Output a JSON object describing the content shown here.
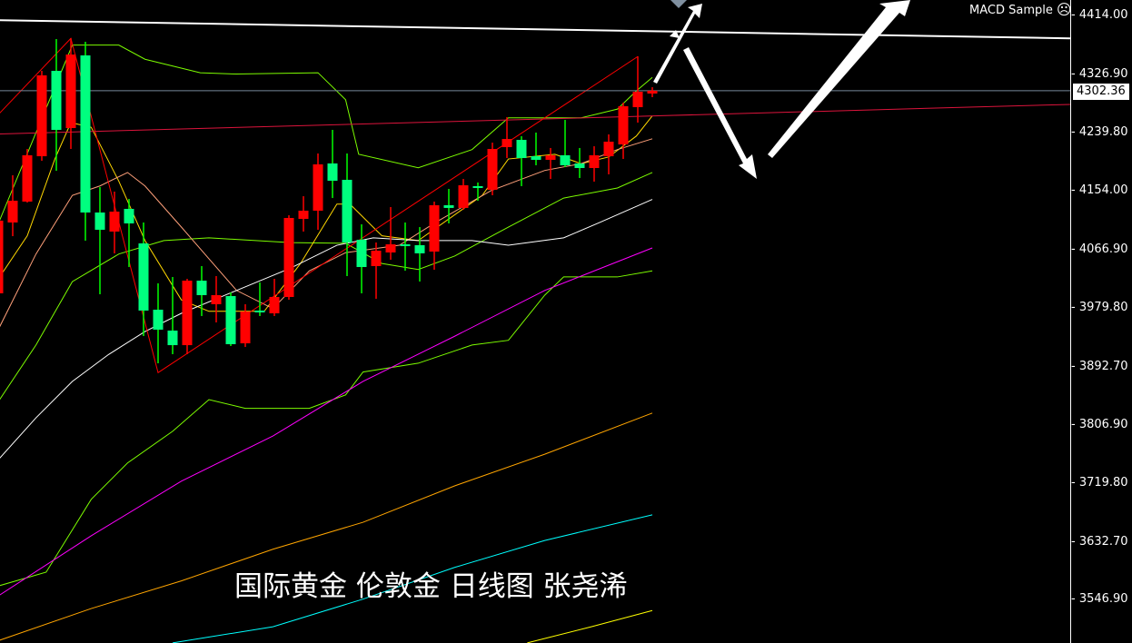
{
  "indicator": {
    "name": "MACD Sample",
    "status_icon": "sad-face-icon"
  },
  "overlay_text": "国际黄金 伦敦金 日线图 张尧浠",
  "current_price": "4302.36",
  "colors": {
    "background": "#000000",
    "bull": "#FF0000",
    "bear": "#00FF7F",
    "bid_line": "#778899"
  },
  "chart_data": {
    "type": "candlestick",
    "title": "",
    "y_axis": {
      "position": "right",
      "range": [
        3490,
        4437
      ],
      "ticks": [
        "4414.00",
        "4326.90",
        "4239.80",
        "4154.00",
        "4066.90",
        "3979.80",
        "3892.70",
        "3806.90",
        "3719.80",
        "3632.70",
        "3546.90"
      ],
      "tick_values": [
        4414.0,
        4326.9,
        4239.8,
        4154.0,
        4066.9,
        3979.8,
        3892.7,
        3806.9,
        3719.8,
        3632.7,
        3546.9
      ]
    },
    "grid": false,
    "candles_ohlc": [
      [
        4001.7,
        4127.0,
        3992.2,
        4109.5
      ],
      [
        4106.8,
        4176.8,
        4086.5,
        4139.1
      ],
      [
        4137.8,
        4215.9,
        4136.4,
        4206.5
      ],
      [
        4205.1,
        4331.8,
        4198.4,
        4325.1
      ],
      [
        4331.8,
        4379.0,
        4183.6,
        4244.2
      ],
      [
        4246.9,
        4380.3,
        4215.9,
        4356.0
      ],
      [
        4354.7,
        4374.9,
        4079.8,
        4121.6
      ],
      [
        4121.6,
        4159.3,
        4000.3,
        4096.0
      ],
      [
        4093.3,
        4152.6,
        4060.9,
        4122.9
      ],
      [
        4127.0,
        4141.8,
        4040.7,
        4105.4
      ],
      [
        4075.8,
        4106.8,
        3938.3,
        3976.1
      ],
      [
        3977.4,
        4016.5,
        3897.9,
        3947.8
      ],
      [
        3946.4,
        4025.9,
        3911.4,
        3924.8
      ],
      [
        3924.8,
        4023.2,
        3911.4,
        4020.5
      ],
      [
        4020.5,
        4042.1,
        3968.0,
        3999.0
      ],
      [
        3985.5,
        4027.3,
        3958.5,
        3999.0
      ],
      [
        3997.6,
        4003.0,
        3923.5,
        3926.2
      ],
      [
        3927.5,
        3985.5,
        3922.1,
        3974.7
      ],
      [
        3976.1,
        4017.8,
        3968.0,
        3973.4
      ],
      [
        3972.0,
        4023.2,
        3968.0,
        3996.3
      ],
      [
        3996.3,
        4117.5,
        3992.2,
        4113.5
      ],
      [
        4112.1,
        4145.8,
        4093.3,
        4124.3
      ],
      [
        4124.3,
        4209.2,
        4096.0,
        4193.0
      ],
      [
        4194.4,
        4244.2,
        4143.1,
        4168.7
      ],
      [
        4170.1,
        4209.2,
        4027.3,
        4077.1
      ],
      [
        4081.2,
        4104.1,
        4001.7,
        4040.7
      ],
      [
        4042.1,
        4077.1,
        3993.6,
        4065.0
      ],
      [
        4062.3,
        4129.7,
        4051.5,
        4074.4
      ],
      [
        4074.4,
        4106.8,
        4035.3,
        4071.7
      ],
      [
        4073.1,
        4100.0,
        4019.2,
        4061.0
      ],
      [
        4063.6,
        4137.8,
        4036.7,
        4132.4
      ],
      [
        4132.4,
        4156.6,
        4105.4,
        4128.4
      ],
      [
        4128.4,
        4171.4,
        4125.6,
        4162.0
      ],
      [
        4160.7,
        4166.1,
        4139.1,
        4158.0
      ],
      [
        4155.3,
        4225.3,
        4147.2,
        4215.9
      ],
      [
        4218.6,
        4263.1,
        4202.4,
        4230.7
      ],
      [
        4229.4,
        4234.8,
        4160.7,
        4202.4
      ],
      [
        4205.1,
        4240.2,
        4191.7,
        4199.7
      ],
      [
        4199.7,
        4217.3,
        4171.4,
        4206.5
      ],
      [
        4206.5,
        4259.0,
        4189.0,
        4191.7
      ],
      [
        4194.4,
        4217.3,
        4172.8,
        4187.6
      ],
      [
        4187.6,
        4219.9,
        4167.4,
        4206.5
      ],
      [
        4205.1,
        4237.5,
        4178.2,
        4226.7
      ],
      [
        4222.6,
        4284.6,
        4201.1,
        4279.3
      ],
      [
        4277.9,
        4353.4,
        4255.0,
        4300.8
      ],
      [
        4298.1,
        4307.5,
        4292.7,
        4302.36
      ]
    ],
    "lines": [
      {
        "color": "#7CFC00",
        "points": [
          [
            0.1,
            4110
          ],
          [
            5.1,
            4370
          ],
          [
            8.3,
            4370
          ],
          [
            10.1,
            4349
          ],
          [
            13.9,
            4329
          ],
          [
            16.4,
            4327
          ],
          [
            22,
            4329
          ],
          [
            23.9,
            4289
          ],
          [
            24.8,
            4208
          ],
          [
            28.9,
            4188
          ],
          [
            32.6,
            4215
          ],
          [
            35.1,
            4262
          ],
          [
            40.1,
            4262
          ],
          [
            42.6,
            4275
          ],
          [
            43.9,
            4302
          ],
          [
            45,
            4322
          ]
        ]
      },
      {
        "color": "#7CFC00",
        "points": [
          [
            0.1,
            3844
          ],
          [
            2.6,
            3925
          ],
          [
            5.1,
            4019
          ],
          [
            8.3,
            4060
          ],
          [
            11.4,
            4080
          ],
          [
            14.5,
            4084
          ],
          [
            20.1,
            4077
          ],
          [
            23.9,
            4076
          ],
          [
            26.4,
            4046
          ],
          [
            28.9,
            4037
          ],
          [
            31.4,
            4057
          ],
          [
            35.1,
            4100
          ],
          [
            38.9,
            4143
          ],
          [
            42.6,
            4158
          ],
          [
            45,
            4181
          ]
        ]
      },
      {
        "color": "#7CFC00",
        "points": [
          [
            0.1,
            3568
          ],
          [
            3.3,
            3588
          ],
          [
            6.4,
            3696
          ],
          [
            8.9,
            3750
          ],
          [
            12,
            3797
          ],
          [
            14.5,
            3844
          ],
          [
            17,
            3831
          ],
          [
            21.4,
            3831
          ],
          [
            23.9,
            3851
          ],
          [
            25.1,
            3885
          ],
          [
            28.9,
            3898
          ],
          [
            32.6,
            3925
          ],
          [
            35.1,
            3932
          ],
          [
            37.6,
            3999
          ],
          [
            38.9,
            4026
          ],
          [
            42.6,
            4026
          ],
          [
            45,
            4035
          ]
        ]
      },
      {
        "color": "#FFD700",
        "points": [
          [
            0.1,
            4026
          ],
          [
            2,
            4087
          ],
          [
            3.9,
            4201
          ],
          [
            5,
            4255
          ],
          [
            6.4,
            4248
          ],
          [
            8.3,
            4168
          ],
          [
            10.1,
            4080
          ],
          [
            12.6,
            3992
          ],
          [
            14.5,
            3975
          ],
          [
            18.3,
            3975
          ],
          [
            20.8,
            4046
          ],
          [
            23.3,
            4134
          ],
          [
            24.2,
            4134
          ],
          [
            26.4,
            4087
          ],
          [
            28.9,
            4080
          ],
          [
            33.3,
            4147
          ],
          [
            35.1,
            4201
          ],
          [
            38.3,
            4208
          ],
          [
            40.1,
            4194
          ],
          [
            42,
            4204
          ],
          [
            43.9,
            4235
          ],
          [
            45,
            4265
          ]
        ]
      },
      {
        "color": "#FFA07A",
        "points": [
          [
            0.1,
            3952
          ],
          [
            2.6,
            4060
          ],
          [
            5.1,
            4147
          ],
          [
            7,
            4161
          ],
          [
            8.9,
            4181
          ],
          [
            10.1,
            4161
          ],
          [
            12.6,
            4100
          ],
          [
            14.5,
            4053
          ],
          [
            16.4,
            4006
          ],
          [
            18.9,
            3979
          ],
          [
            21.4,
            4035
          ],
          [
            23.9,
            4062
          ],
          [
            27.6,
            4073
          ],
          [
            30.1,
            4107
          ],
          [
            33.9,
            4154
          ],
          [
            37.6,
            4184
          ],
          [
            40.1,
            4194
          ],
          [
            42.6,
            4215
          ],
          [
            45,
            4231
          ]
        ]
      },
      {
        "color": "#FFFFFF",
        "points": [
          [
            0.1,
            3757
          ],
          [
            2.6,
            3817
          ],
          [
            5.1,
            3871
          ],
          [
            7.6,
            3911
          ],
          [
            10.1,
            3945
          ],
          [
            12.6,
            3972
          ],
          [
            16.4,
            4006
          ],
          [
            20.1,
            4039
          ],
          [
            23.3,
            4073
          ],
          [
            25.8,
            4084
          ],
          [
            28.9,
            4080
          ],
          [
            32.6,
            4080
          ],
          [
            35.1,
            4073
          ],
          [
            38.9,
            4084
          ],
          [
            41.4,
            4107
          ],
          [
            45,
            4141
          ]
        ]
      },
      {
        "color": "#FF00FF",
        "points": [
          [
            0.1,
            3554
          ],
          [
            6.4,
            3642
          ],
          [
            12.6,
            3723
          ],
          [
            18.9,
            3790
          ],
          [
            25.1,
            3871
          ],
          [
            31.4,
            3938
          ],
          [
            37.6,
            4006
          ],
          [
            45,
            4069
          ]
        ]
      },
      {
        "color": "#FFA500",
        "points": [
          [
            0.1,
            3487
          ],
          [
            6.4,
            3534
          ],
          [
            12.6,
            3575
          ],
          [
            18.9,
            3622
          ],
          [
            25.1,
            3662
          ],
          [
            31.4,
            3716
          ],
          [
            37.6,
            3763
          ],
          [
            45,
            3824
          ]
        ]
      },
      {
        "color": "#00FFFF",
        "points": [
          [
            12,
            3483
          ],
          [
            18.9,
            3507
          ],
          [
            25.1,
            3548
          ],
          [
            31.4,
            3595
          ],
          [
            37.6,
            3635
          ],
          [
            45,
            3673
          ]
        ]
      },
      {
        "color": "#FFFF00",
        "points": [
          [
            36.4,
            3483
          ],
          [
            40.8,
            3507
          ],
          [
            45,
            3531
          ]
        ]
      }
    ],
    "trendlines": [
      {
        "color": "#FFFFFF",
        "width": 2,
        "points": [
          [
            0,
            4407
          ],
          [
            73.75,
            4380
          ]
        ]
      },
      {
        "color": "#DC143C",
        "width": 1,
        "points": [
          [
            0,
            4238
          ],
          [
            73.75,
            4282
          ]
        ]
      },
      {
        "color": "#FF0000",
        "width": 1,
        "points": [
          [
            0.1,
            4269
          ],
          [
            5,
            4380
          ],
          [
            11,
            3884
          ],
          [
            44,
            4353
          ]
        ]
      }
    ]
  }
}
